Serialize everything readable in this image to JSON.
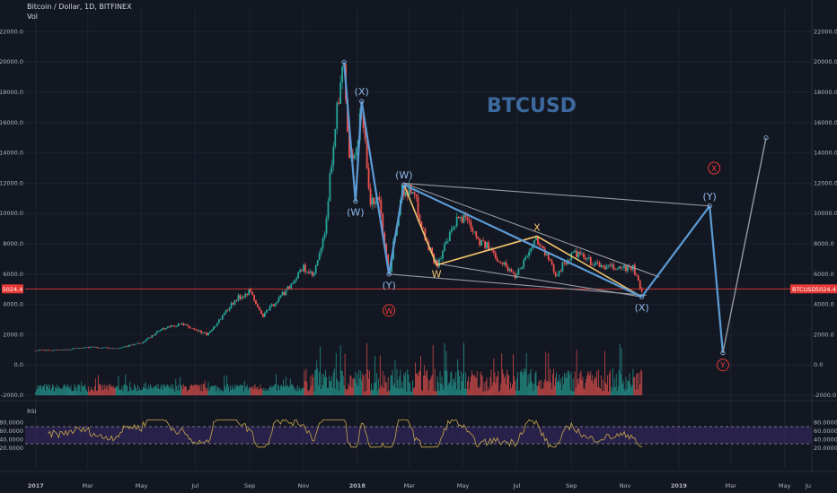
{
  "header": {
    "title": "Bitcoin / Dollar, 1D, BITFINEX",
    "vol_label": "Vol"
  },
  "watermark": "BTCUSD",
  "colors": {
    "background": "#131722",
    "grid": "#1f2330",
    "up": "#26a69a",
    "down": "#ef5350",
    "blue_wave": "#5b9bd5",
    "yellow_wave": "#f0c36d",
    "gray_line": "#9598a1",
    "red_line": "#e53935",
    "rsi_band": "#3a2a6a",
    "rsi_line": "#c9a94b",
    "text": "#b2b5be",
    "label_blue": "#8fb8e8",
    "label_red": "#e53935"
  },
  "chart_data": {
    "type": "candlestick",
    "symbol": "BTCUSD",
    "x_tick_labels": [
      "2017",
      "Mar",
      "May",
      "Jul",
      "Sep",
      "Nov",
      "2018",
      "Mar",
      "May",
      "Jul",
      "Sep",
      "Nov",
      "2019",
      "Mar",
      "May",
      "Ju"
    ],
    "price_axis": {
      "range": [
        -2000,
        23000
      ],
      "ticks": [
        "22000.0",
        "20000.0",
        "18000.0",
        "16000.0",
        "14000.0",
        "12000.0",
        "10000.0",
        "8000.0",
        "6000.0",
        "4000.0",
        "2000.0",
        "0.0",
        "-2000.0"
      ]
    },
    "current_price": {
      "value": 5024.4,
      "label": "5024.4",
      "symbol_label": "BTCUSD",
      "value_label": "5024.4"
    },
    "price_path": [
      [
        "2017-01-01",
        960
      ],
      [
        "2017-02-01",
        1000
      ],
      [
        "2017-03-01",
        1180
      ],
      [
        "2017-04-01",
        1100
      ],
      [
        "2017-05-01",
        1450
      ],
      [
        "2017-05-25",
        2400
      ],
      [
        "2017-06-15",
        2700
      ],
      [
        "2017-07-15",
        2000
      ],
      [
        "2017-08-15",
        4300
      ],
      [
        "2017-09-01",
        4900
      ],
      [
        "2017-09-15",
        3200
      ],
      [
        "2017-10-10",
        4800
      ],
      [
        "2017-11-01",
        6400
      ],
      [
        "2017-11-12",
        5800
      ],
      [
        "2017-11-25",
        8500
      ],
      [
        "2017-12-07",
        16000
      ],
      [
        "2017-12-17",
        19800
      ],
      [
        "2017-12-22",
        14000
      ],
      [
        "2017-12-28",
        13000
      ],
      [
        "2018-01-06",
        17200
      ],
      [
        "2018-01-16",
        10500
      ],
      [
        "2018-01-25",
        11200
      ],
      [
        "2018-02-06",
        6000
      ],
      [
        "2018-02-20",
        11500
      ],
      [
        "2018-03-05",
        11600
      ],
      [
        "2018-03-20",
        8200
      ],
      [
        "2018-04-01",
        6600
      ],
      [
        "2018-04-25",
        9600
      ],
      [
        "2018-05-05",
        9800
      ],
      [
        "2018-05-20",
        8200
      ],
      [
        "2018-06-01",
        7600
      ],
      [
        "2018-06-29",
        5900
      ],
      [
        "2018-07-24",
        8400
      ],
      [
        "2018-08-14",
        6000
      ],
      [
        "2018-09-04",
        7400
      ],
      [
        "2018-09-30",
        6600
      ],
      [
        "2018-10-15",
        6400
      ],
      [
        "2018-11-10",
        6400
      ],
      [
        "2018-11-15",
        5600
      ],
      [
        "2018-11-20",
        4700
      ]
    ],
    "rsi": {
      "label": "RSI",
      "range": [
        10,
        90
      ],
      "ticks": [
        "80.0000",
        "60.0000",
        "40.0000",
        "20.0000"
      ],
      "band": [
        30,
        70
      ]
    },
    "blue_wave": {
      "points": [
        [
          "2017-12-17",
          20000
        ],
        [
          "2017-12-30",
          10800
        ],
        [
          "2018-01-06",
          17400
        ],
        [
          "2018-02-06",
          6000
        ],
        [
          "2018-02-23",
          11900
        ],
        [
          "2018-11-20",
          4500
        ],
        [
          "2019-02-05",
          10500
        ],
        [
          "2019-02-20",
          800
        ],
        [
          "2019-04-10",
          15000
        ]
      ],
      "labels": [
        {
          "text": "(W)",
          "x": "2017-12-30",
          "y": 10800,
          "pos": "below"
        },
        {
          "text": "(X)",
          "x": "2018-01-06",
          "y": 17400,
          "pos": "above"
        },
        {
          "text": "(Y)",
          "x": "2018-02-06",
          "y": 6000,
          "pos": "below"
        },
        {
          "text": "(W)",
          "x": "2018-02-23",
          "y": 11900,
          "pos": "above"
        },
        {
          "text": "(X)",
          "x": "2018-11-20",
          "y": 4500,
          "pos": "below"
        },
        {
          "text": "(Y)",
          "x": "2019-02-05",
          "y": 10500,
          "pos": "above"
        }
      ]
    },
    "yellow_wave": {
      "points": [
        [
          "2018-02-23",
          11900
        ],
        [
          "2018-04-01",
          6600
        ],
        [
          "2018-07-24",
          8500
        ],
        [
          "2018-11-20",
          4500
        ]
      ],
      "labels": [
        {
          "text": "W",
          "x": "2018-04-01",
          "y": 6600,
          "pos": "below"
        },
        {
          "text": "X",
          "x": "2018-07-24",
          "y": 8500,
          "pos": "above"
        }
      ]
    },
    "trend_lines": [
      [
        [
          "2018-02-23",
          12000
        ],
        [
          "2019-02-05",
          10500
        ]
      ],
      [
        [
          "2018-02-23",
          12000
        ],
        [
          "2018-12-10",
          5800
        ]
      ],
      [
        [
          "2018-02-06",
          6000
        ],
        [
          "2018-11-25",
          4600
        ]
      ],
      [
        [
          "2018-04-01",
          6700
        ],
        [
          "2018-11-20",
          4500
        ]
      ]
    ],
    "red_circle_labels": [
      {
        "text": "W",
        "x": "2018-02-06",
        "y": 3600
      },
      {
        "text": "X",
        "x": "2019-02-10",
        "y": 13000
      },
      {
        "text": "Y",
        "x": "2019-02-20",
        "y": 0
      }
    ]
  }
}
